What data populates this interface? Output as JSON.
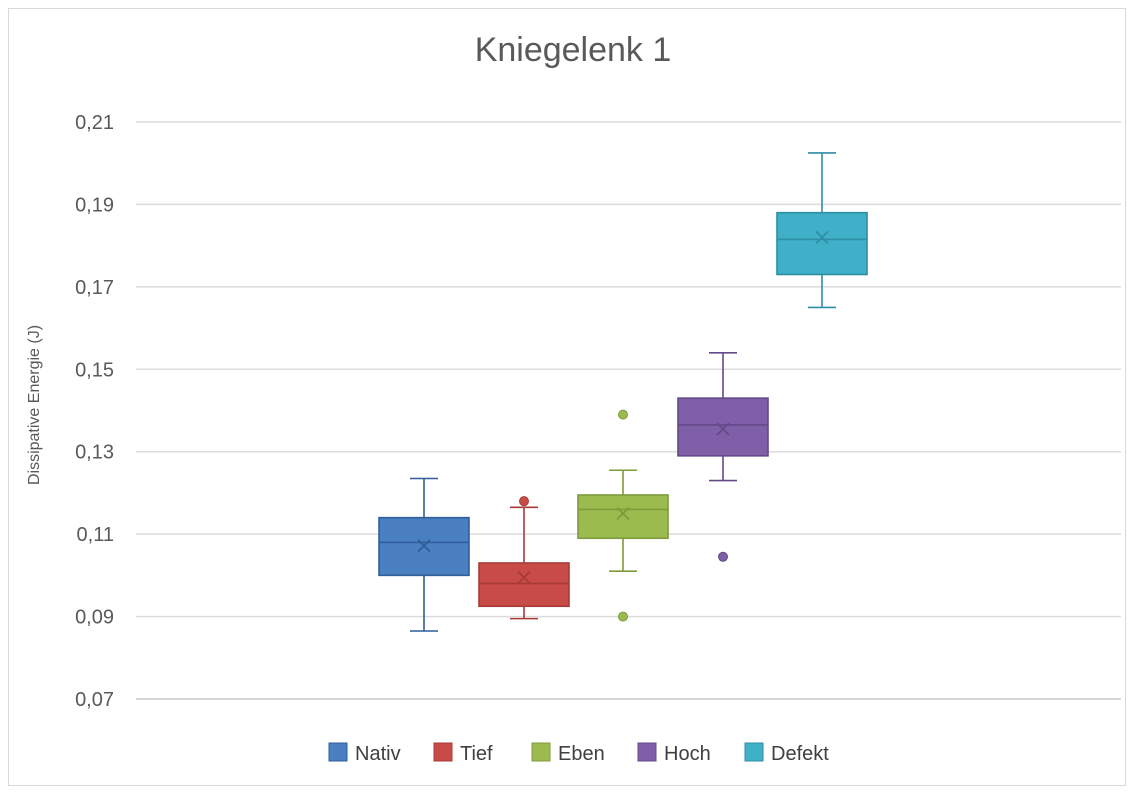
{
  "chart_data": {
    "type": "box",
    "title": "Kniegelenk 1",
    "xlabel": "",
    "ylabel": "Dissipative Energie (J)",
    "ylim": [
      0.07,
      0.21
    ],
    "yticks": [
      "0,21",
      "0,19",
      "0,17",
      "0,15",
      "0,13",
      "0,11",
      "0,09",
      "0,07"
    ],
    "ytick_values": [
      0.21,
      0.19,
      0.17,
      0.15,
      0.13,
      0.11,
      0.09,
      0.07
    ],
    "grid": true,
    "legend_position": "bottom",
    "series": [
      {
        "name": "Nativ",
        "color": "#4a7fc1",
        "edge": "#2f5e9b",
        "whisker_low": 0.0865,
        "q1": 0.1,
        "median": 0.108,
        "q3": 0.114,
        "whisker_high": 0.1235,
        "mean": 0.1072,
        "outliers": []
      },
      {
        "name": "Tief",
        "color": "#c94b48",
        "edge": "#a83a37",
        "whisker_low": 0.0895,
        "q1": 0.0925,
        "median": 0.098,
        "q3": 0.103,
        "whisker_high": 0.1165,
        "mean": 0.0995,
        "outliers": [
          0.118
        ]
      },
      {
        "name": "Eben",
        "color": "#9cbb4f",
        "edge": "#7f9b3c",
        "whisker_low": 0.101,
        "q1": 0.109,
        "median": 0.116,
        "q3": 0.1195,
        "whisker_high": 0.1255,
        "mean": 0.115,
        "outliers": [
          0.139,
          0.09
        ]
      },
      {
        "name": "Hoch",
        "color": "#7f60a8",
        "edge": "#634a88",
        "whisker_low": 0.123,
        "q1": 0.129,
        "median": 0.1365,
        "q3": 0.143,
        "whisker_high": 0.154,
        "mean": 0.1355,
        "outliers": [
          0.1045
        ]
      },
      {
        "name": "Defekt",
        "color": "#40b0c8",
        "edge": "#2e8ea4",
        "whisker_low": 0.165,
        "q1": 0.173,
        "median": 0.1815,
        "q3": 0.188,
        "whisker_high": 0.2025,
        "mean": 0.182,
        "outliers": []
      }
    ]
  }
}
